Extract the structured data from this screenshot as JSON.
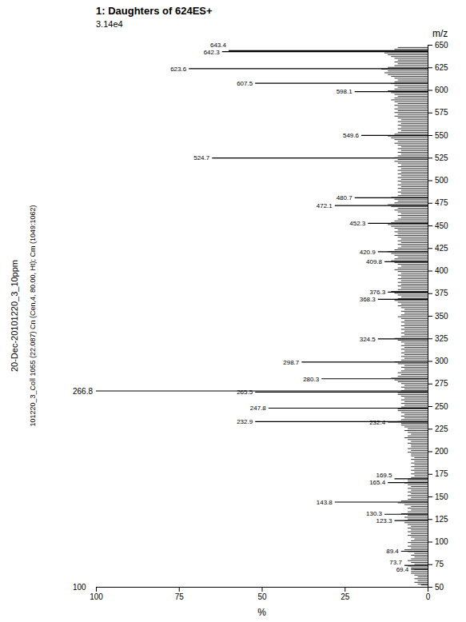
{
  "chart_data": {
    "type": "bar",
    "orientation": "horizontal",
    "title": "1: Daughters of 624ES+",
    "subtitle": "3.14e4",
    "info_texts": [
      "20-Dec-20101220_3_10ppm",
      "101220_3_Coll 1055 (22.087) Cn (Cen,4, 80.00, Ht); Cm (1049:1062)"
    ],
    "x_label": "%",
    "y_label": "m/z",
    "xlim": [
      100,
      0
    ],
    "xticks": [
      0,
      25,
      50,
      75,
      100
    ],
    "ylim": [
      50,
      650
    ],
    "yticks": [
      50,
      75,
      100,
      125,
      150,
      175,
      200,
      225,
      250,
      275,
      300,
      325,
      350,
      375,
      400,
      425,
      450,
      475,
      500,
      525,
      550,
      575,
      600,
      625,
      650
    ],
    "hline": {
      "value": 266.8,
      "label": "266.8",
      "color": "#000000"
    },
    "annotations": [
      {
        "text": "100",
        "x": 103,
        "y": 50
      }
    ],
    "series": [
      {
        "color": "#000000",
        "y": [
          52,
          53,
          55,
          57,
          59,
          61,
          63,
          65,
          67,
          69,
          71,
          73,
          75,
          77,
          79,
          81,
          83,
          85,
          87,
          89,
          91,
          93,
          95,
          97,
          99,
          101,
          103,
          105,
          107,
          109,
          111,
          113,
          115,
          117,
          119,
          121,
          123,
          125,
          127,
          129,
          131,
          133,
          135,
          137,
          139,
          141,
          143,
          145,
          147,
          149,
          151,
          153,
          155,
          157,
          159,
          161,
          163,
          165,
          167,
          169,
          171,
          173,
          175,
          177,
          179,
          181,
          183,
          185,
          187,
          189,
          191,
          193,
          195,
          197,
          199,
          201,
          203,
          205,
          207,
          209,
          211,
          213,
          215,
          217,
          219,
          221,
          223,
          225,
          227,
          229,
          231,
          233,
          235,
          237,
          239,
          241,
          243,
          245,
          247,
          249,
          251,
          253,
          255,
          257,
          259,
          261,
          263,
          265,
          267,
          269,
          271,
          273,
          275,
          277,
          279,
          281,
          283,
          285,
          287,
          289,
          291,
          293,
          295,
          297,
          299,
          301,
          303,
          305,
          307,
          309,
          311,
          313,
          315,
          317,
          319,
          321,
          323,
          325,
          327,
          329,
          331,
          333,
          335,
          337,
          339,
          341,
          343,
          345,
          347,
          349,
          351,
          353,
          355,
          357,
          359,
          361,
          363,
          365,
          367,
          369,
          371,
          373,
          375,
          377,
          379,
          381,
          383,
          385,
          387,
          389,
          391,
          393,
          395,
          397,
          399,
          401,
          403,
          405,
          407,
          409,
          411,
          413,
          415,
          417,
          419,
          421,
          423,
          425,
          427,
          429,
          431,
          433,
          435,
          437,
          439,
          441,
          443,
          445,
          447,
          449,
          451,
          453,
          455,
          457,
          459,
          461,
          463,
          465,
          467,
          469,
          471,
          473,
          475,
          477,
          479,
          481,
          483,
          485,
          487,
          489,
          491,
          493,
          495,
          497,
          499,
          501,
          503,
          505,
          507,
          509,
          511,
          513,
          515,
          517,
          519,
          521,
          523,
          525,
          527,
          529,
          531,
          533,
          535,
          537,
          539,
          541,
          543,
          545,
          547,
          549,
          551,
          553,
          555,
          557,
          559,
          561,
          563,
          565,
          567,
          569,
          571,
          573,
          575,
          577,
          579,
          581,
          583,
          585,
          587,
          589,
          591,
          593,
          595,
          597,
          599,
          601,
          603,
          605,
          607,
          609,
          611,
          613,
          615,
          617,
          619,
          621,
          623,
          625,
          627,
          629,
          631,
          633,
          635,
          637,
          639,
          641,
          643,
          645,
          647
        ],
        "values": [
          2,
          3,
          4,
          3,
          4,
          3,
          4,
          5,
          5,
          4,
          5,
          6,
          4,
          5,
          6,
          5,
          4,
          5,
          4,
          6,
          7,
          5,
          6,
          5,
          6,
          5,
          4,
          5,
          6,
          5,
          6,
          5,
          6,
          5,
          6,
          7,
          7,
          6,
          7,
          6,
          8,
          6,
          5,
          6,
          5,
          7,
          9,
          8,
          6,
          5,
          6,
          5,
          6,
          5,
          6,
          5,
          6,
          7,
          6,
          6,
          5,
          4,
          5,
          4,
          5,
          4,
          5,
          4,
          5,
          4,
          5,
          4,
          5,
          5,
          6,
          5,
          6,
          5,
          5,
          6,
          5,
          6,
          7,
          6,
          5,
          6,
          7,
          6,
          7,
          8,
          8,
          9,
          8,
          7,
          8,
          7,
          8,
          9,
          9,
          8,
          7,
          8,
          7,
          8,
          7,
          8,
          9,
          9,
          8,
          7,
          8,
          7,
          8,
          9,
          10,
          11,
          9,
          8,
          9,
          8,
          7,
          8,
          7,
          9,
          10,
          8,
          7,
          8,
          7,
          8,
          7,
          8,
          7,
          8,
          7,
          8,
          9,
          10,
          8,
          7,
          8,
          7,
          8,
          7,
          8,
          7,
          8,
          7,
          8,
          9,
          8,
          7,
          8,
          7,
          8,
          9,
          8,
          9,
          10,
          9,
          8,
          9,
          10,
          11,
          9,
          8,
          9,
          8,
          9,
          8,
          9,
          8,
          9,
          8,
          9,
          10,
          9,
          8,
          9,
          10,
          11,
          10,
          9,
          10,
          11,
          12,
          10,
          9,
          8,
          9,
          8,
          9,
          8,
          9,
          10,
          9,
          10,
          9,
          10,
          11,
          12,
          11,
          10,
          9,
          8,
          9,
          8,
          9,
          10,
          9,
          11,
          12,
          10,
          9,
          10,
          11,
          9,
          8,
          9,
          8,
          9,
          8,
          9,
          8,
          9,
          8,
          9,
          8,
          9,
          8,
          9,
          8,
          9,
          8,
          9,
          10,
          9,
          10,
          9,
          8,
          9,
          8,
          9,
          8,
          9,
          10,
          9,
          10,
          11,
          12,
          10,
          9,
          8,
          9,
          8,
          9,
          8,
          9,
          8,
          9,
          10,
          9,
          10,
          9,
          10,
          9,
          10,
          9,
          10,
          11,
          10,
          9,
          10,
          11,
          12,
          10,
          9,
          10,
          11,
          10,
          9,
          10,
          11,
          12,
          13,
          12,
          14,
          12,
          10,
          9,
          10,
          9,
          10,
          11,
          12,
          13,
          11,
          10,
          9
        ]
      },
      {
        "color": "#000000",
        "y": [
          69.4,
          73.7,
          89.4,
          123.3,
          130.3,
          143.8,
          165.4,
          169.5,
          232.4,
          232.9,
          247.8,
          265.5,
          280.3,
          298.7,
          324.5,
          368.3,
          376.3,
          409.8,
          420.9,
          452.3,
          472.1,
          480.7,
          524.7,
          549.6,
          598.1,
          607.5,
          623.6,
          642.3,
          643.4
        ],
        "values": [
          5,
          7,
          8,
          10,
          13,
          28,
          12,
          10,
          12,
          52,
          48,
          52,
          32,
          38,
          15,
          15,
          12,
          13,
          15,
          18,
          28,
          22,
          65,
          20,
          22,
          52,
          72,
          62,
          60
        ],
        "labels": [
          "69.4",
          "73.7",
          "89.4",
          "123.3",
          "130.3",
          "143.8",
          "165.4",
          "169.5",
          "232.4",
          "232.9",
          "247.8",
          "265.5",
          "280.3",
          "298.7",
          "324.5",
          "368.3",
          "376.3",
          "409.8",
          "420.9",
          "452.3",
          "472.1",
          "480.7",
          "524.7",
          "549.6",
          "598.1",
          "607.5",
          "623.6",
          "642.3",
          "643.4"
        ]
      }
    ]
  }
}
